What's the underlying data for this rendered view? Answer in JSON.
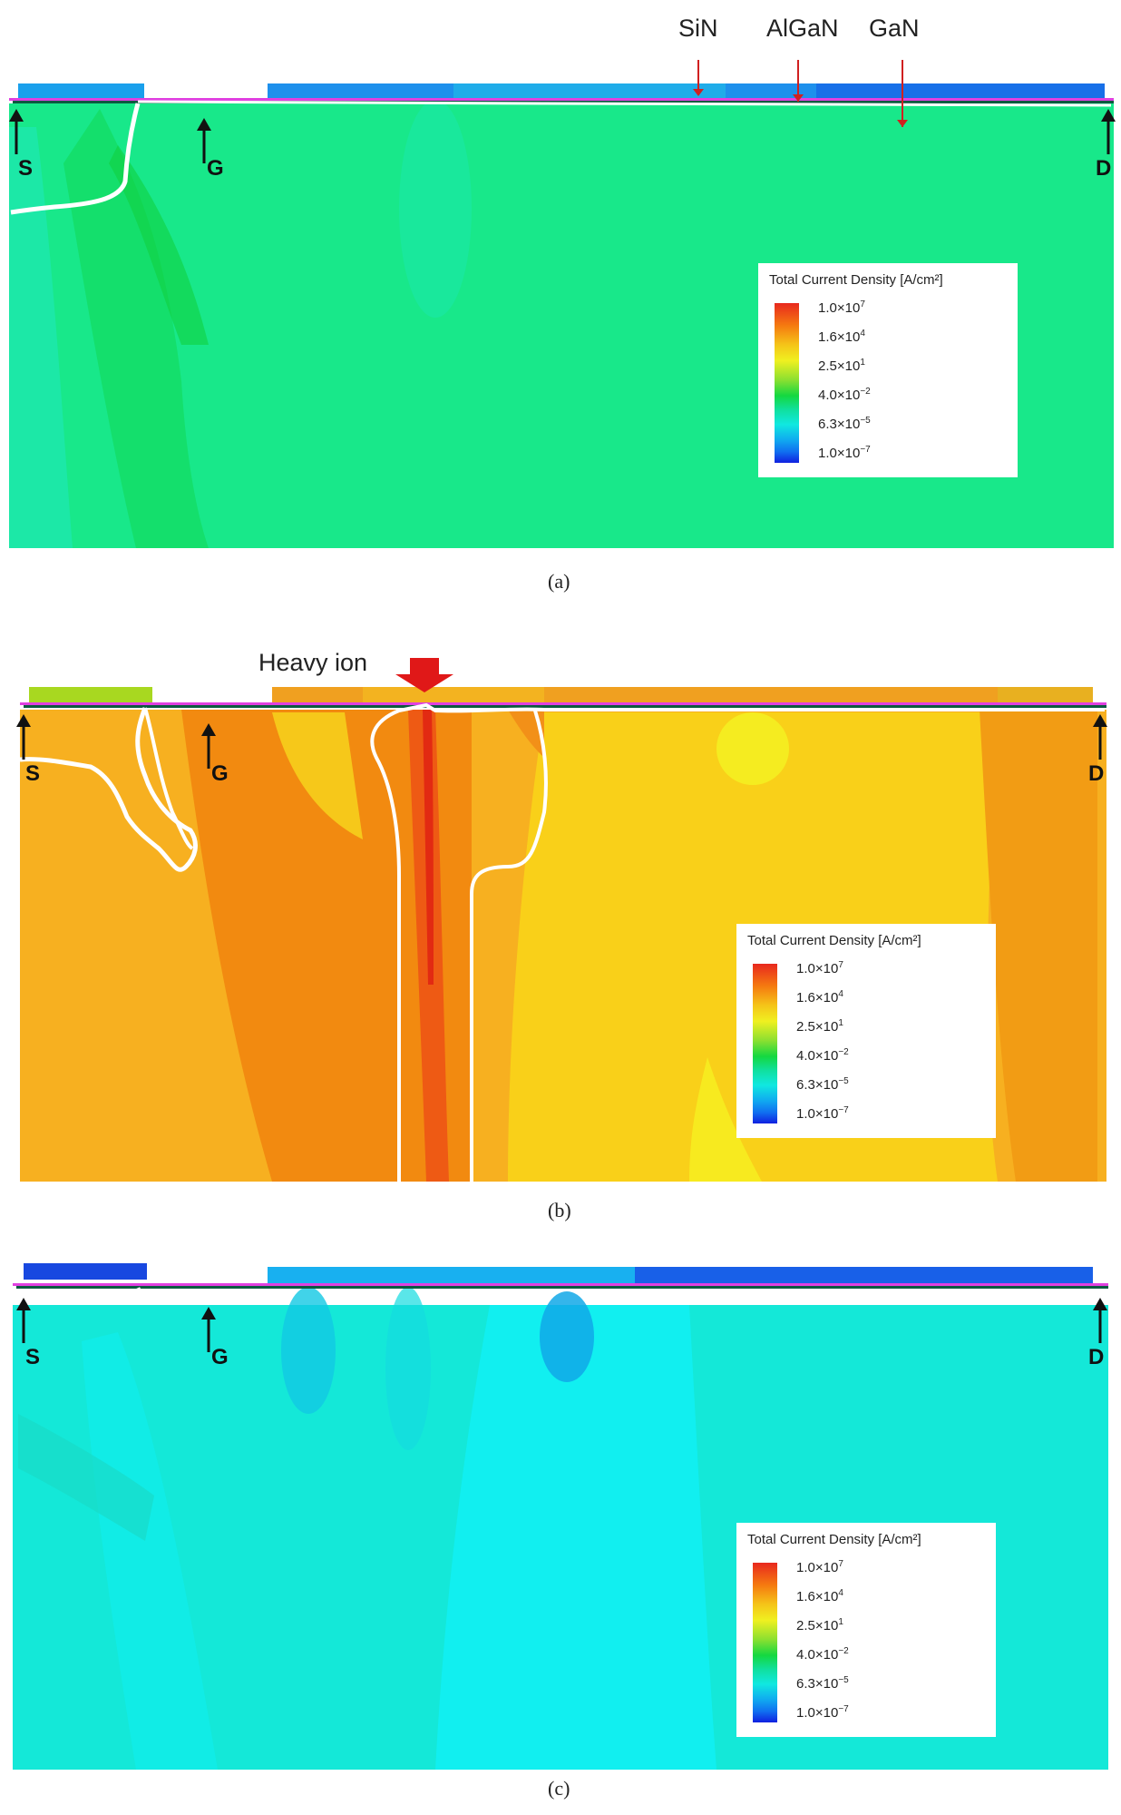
{
  "layer_labels": {
    "sin": "SiN",
    "algan": "AlGaN",
    "gan": "GaN"
  },
  "panels": [
    {
      "caption": "(a)",
      "legend": {
        "title": "Total Current Density [A/cm²]",
        "ticks": [
          {
            "mantissa": "1.0",
            "exp": "7"
          },
          {
            "mantissa": "1.6",
            "exp": "4"
          },
          {
            "mantissa": "2.5",
            "exp": "1"
          },
          {
            "mantissa": "4.0",
            "exp": "−2"
          },
          {
            "mantissa": "6.3",
            "exp": "−5"
          },
          {
            "mantissa": "1.0",
            "exp": "−7"
          }
        ]
      },
      "terminals": {
        "source": "S",
        "gate": "G",
        "drain": "D"
      }
    },
    {
      "caption": "(b)",
      "annotation": "Heavy ion",
      "legend": {
        "title": "Total Current Density [A/cm²]",
        "ticks": [
          {
            "mantissa": "1.0",
            "exp": "7"
          },
          {
            "mantissa": "1.6",
            "exp": "4"
          },
          {
            "mantissa": "2.5",
            "exp": "1"
          },
          {
            "mantissa": "4.0",
            "exp": "−2"
          },
          {
            "mantissa": "6.3",
            "exp": "−5"
          },
          {
            "mantissa": "1.0",
            "exp": "−7"
          }
        ]
      },
      "terminals": {
        "source": "S",
        "gate": "G",
        "drain": "D"
      }
    },
    {
      "caption": "(c)",
      "legend": {
        "title": "Total Current Density [A/cm²]",
        "ticks": [
          {
            "mantissa": "1.0",
            "exp": "7"
          },
          {
            "mantissa": "1.6",
            "exp": "4"
          },
          {
            "mantissa": "2.5",
            "exp": "1"
          },
          {
            "mantissa": "4.0",
            "exp": "−2"
          },
          {
            "mantissa": "6.3",
            "exp": "−5"
          },
          {
            "mantissa": "1.0",
            "exp": "−7"
          }
        ]
      },
      "terminals": {
        "source": "S",
        "gate": "G",
        "drain": "D"
      }
    }
  ],
  "colors": {
    "a_background": "#18e88a",
    "b_background": "#f7b020",
    "c_background": "#14e8d8",
    "contour_line": "#ffffff",
    "metal_edge": "#e040e0",
    "arrow_red": "#e01818"
  }
}
